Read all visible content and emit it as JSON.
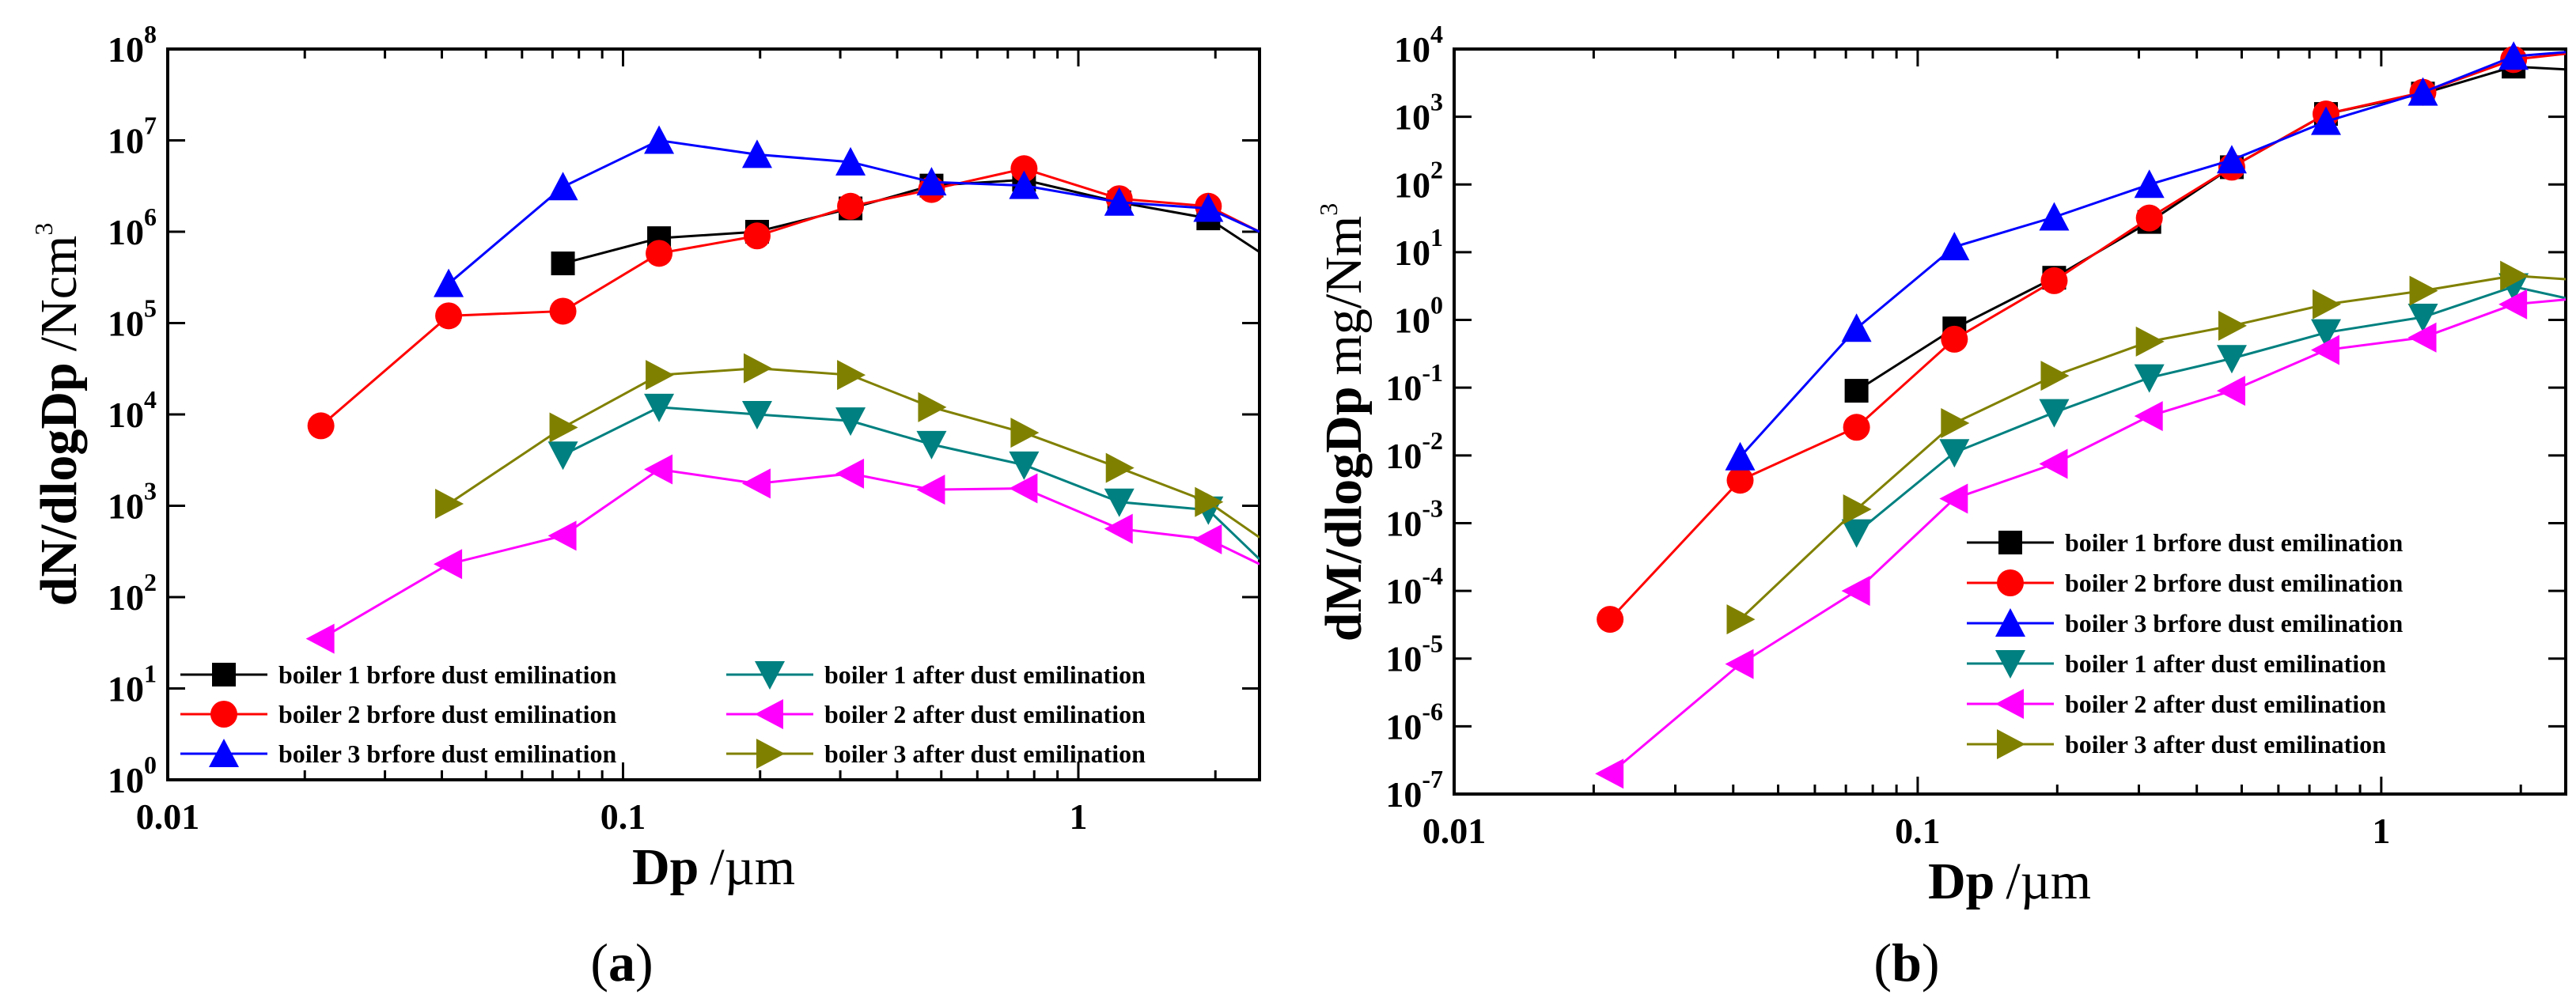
{
  "chart_data": [
    {
      "type": "line",
      "panel_label": "a",
      "xlabel": {
        "main": "Dp",
        "unit": "/µm"
      },
      "ylabel": {
        "main": "dN/dlogDp",
        "unit": "/Ncm",
        "unit_sup": "3"
      },
      "xscale": "log",
      "yscale": "log",
      "xlim": [
        0.01,
        2.5
      ],
      "ylim": [
        1,
        100000000
      ],
      "xticks": [
        {
          "value": 0.01,
          "label": "0.01"
        },
        {
          "value": 0.1,
          "label": "0.1"
        },
        {
          "value": 1,
          "label": "1"
        }
      ],
      "yticks": [
        {
          "value": 1,
          "base": "10",
          "exp": "0"
        },
        {
          "value": 10,
          "base": "10",
          "exp": "1"
        },
        {
          "value": 100,
          "base": "10",
          "exp": "2"
        },
        {
          "value": 1000,
          "base": "10",
          "exp": "3"
        },
        {
          "value": 10000,
          "base": "10",
          "exp": "4"
        },
        {
          "value": 100000,
          "base": "10",
          "exp": "5"
        },
        {
          "value": 1000000,
          "base": "10",
          "exp": "6"
        },
        {
          "value": 10000000,
          "base": "10",
          "exp": "7"
        },
        {
          "value": 100000000,
          "base": "10",
          "exp": "8"
        }
      ],
      "legend_position": "bottom-left, two columns",
      "series": [
        {
          "name": "boiler 1 brfore dust emilination",
          "color": "#000000",
          "marker": "square",
          "x": [
            0.0738,
            0.12,
            0.197,
            0.316,
            0.476,
            0.76,
            1.23,
            1.93,
            2.5
          ],
          "y": [
            450000,
            850000,
            1000000,
            1800000,
            3200000,
            3700000,
            2100000,
            1400000,
            600000
          ]
        },
        {
          "name": "boiler 2 brfore dust emilination",
          "color": "#ff0000",
          "marker": "circle",
          "x": [
            0.0217,
            0.0414,
            0.0738,
            0.12,
            0.197,
            0.316,
            0.476,
            0.76,
            1.23,
            1.93,
            2.5
          ],
          "y": [
            7500,
            120000,
            135000,
            580000,
            900000,
            1900000,
            2900000,
            4900000,
            2300000,
            1900000,
            1000000
          ]
        },
        {
          "name": "boiler 3 brfore dust emilination",
          "color": "#0000ff",
          "marker": "triangle-up",
          "x": [
            0.0414,
            0.0738,
            0.12,
            0.197,
            0.316,
            0.476,
            0.76,
            1.23,
            1.93,
            2.5
          ],
          "y": [
            270000,
            3100000,
            10000000,
            7000000,
            5800000,
            3500000,
            3200000,
            2100000,
            1800000,
            1000000
          ]
        },
        {
          "name": "boiler 1 after dust emilination",
          "color": "#008080",
          "marker": "triangle-down",
          "x": [
            0.0738,
            0.12,
            0.197,
            0.316,
            0.476,
            0.76,
            1.23,
            1.93,
            2.5
          ],
          "y": [
            3600,
            12000,
            10000,
            8500,
            4700,
            2800,
            1100,
            900,
            260
          ]
        },
        {
          "name": "boiler 2 after dust emilination",
          "color": "#ff00ff",
          "marker": "triangle-left",
          "x": [
            0.0217,
            0.0414,
            0.0738,
            0.12,
            0.197,
            0.316,
            0.476,
            0.76,
            1.23,
            1.93,
            2.5
          ],
          "y": [
            35,
            230,
            470,
            2500,
            1750,
            2250,
            1500,
            1550,
            560,
            430,
            230
          ]
        },
        {
          "name": "boiler 3 after dust emilination",
          "color": "#808000",
          "marker": "triangle-right",
          "x": [
            0.0414,
            0.0738,
            0.12,
            0.197,
            0.316,
            0.476,
            0.76,
            1.23,
            1.93,
            2.5
          ],
          "y": [
            1050,
            7200,
            27000,
            32000,
            27000,
            12000,
            6300,
            2600,
            1100,
            450
          ]
        }
      ]
    },
    {
      "type": "line",
      "panel_label": "b",
      "xlabel": {
        "main": "Dp",
        "unit": "/µm"
      },
      "ylabel": {
        "main": "dM/dlogDp",
        "unit": "mg/Nm",
        "unit_sup": "3"
      },
      "xscale": "log",
      "yscale": "log",
      "xlim": [
        0.01,
        2.5
      ],
      "ylim": [
        1e-07,
        10000
      ],
      "xticks": [
        {
          "value": 0.01,
          "label": "0.01"
        },
        {
          "value": 0.1,
          "label": "0.1"
        },
        {
          "value": 1,
          "label": "1"
        }
      ],
      "yticks": [
        {
          "value": 1e-07,
          "base": "10",
          "exp": "-7"
        },
        {
          "value": 1e-06,
          "base": "10",
          "exp": "-6"
        },
        {
          "value": 1e-05,
          "base": "10",
          "exp": "-5"
        },
        {
          "value": 0.0001,
          "base": "10",
          "exp": "-4"
        },
        {
          "value": 0.001,
          "base": "10",
          "exp": "-3"
        },
        {
          "value": 0.01,
          "base": "10",
          "exp": "-2"
        },
        {
          "value": 0.1,
          "base": "10",
          "exp": "-1"
        },
        {
          "value": 1,
          "base": "10",
          "exp": "0"
        },
        {
          "value": 10,
          "base": "10",
          "exp": "1"
        },
        {
          "value": 100,
          "base": "10",
          "exp": "2"
        },
        {
          "value": 1000,
          "base": "10",
          "exp": "3"
        },
        {
          "value": 10000,
          "base": "10",
          "exp": "4"
        }
      ],
      "legend_position": "bottom-right, one column",
      "series": [
        {
          "name": "boiler 1 brfore dust emilination",
          "color": "#000000",
          "marker": "square",
          "x": [
            0.0738,
            0.12,
            0.197,
            0.316,
            0.476,
            0.76,
            1.23,
            1.93,
            2.5
          ],
          "y": [
            0.09,
            0.75,
            4.2,
            28,
            180,
            1100,
            2200,
            5500,
            5000
          ]
        },
        {
          "name": "boiler 2 brfore dust emilination",
          "color": "#ff0000",
          "marker": "circle",
          "x": [
            0.0217,
            0.0414,
            0.0738,
            0.12,
            0.197,
            0.316,
            0.476,
            0.76,
            1.23,
            1.93,
            2.5
          ],
          "y": [
            3.8e-05,
            0.0043,
            0.026,
            0.52,
            3.8,
            32,
            180,
            1100,
            2300,
            7000,
            8500
          ]
        },
        {
          "name": "boiler 3 brfore dust emilination",
          "color": "#0000ff",
          "marker": "triangle-up",
          "x": [
            0.0414,
            0.0738,
            0.12,
            0.197,
            0.316,
            0.476,
            0.76,
            1.23,
            1.93,
            2.5
          ],
          "y": [
            0.0095,
            0.75,
            12,
            33,
            100,
            230,
            850,
            2300,
            7800,
            9000
          ]
        },
        {
          "name": "boiler 1 after dust emilination",
          "color": "#008080",
          "marker": "triangle-down",
          "x": [
            0.0738,
            0.12,
            0.197,
            0.316,
            0.476,
            0.76,
            1.23,
            1.93,
            2.5
          ],
          "y": [
            0.00072,
            0.011,
            0.043,
            0.14,
            0.27,
            0.65,
            1.1,
            3.1,
            2.1
          ]
        },
        {
          "name": "boiler 2 after dust emilination",
          "color": "#ff00ff",
          "marker": "triangle-left",
          "x": [
            0.0217,
            0.0414,
            0.0738,
            0.12,
            0.197,
            0.316,
            0.476,
            0.76,
            1.23,
            1.93,
            2.5
          ],
          "y": [
            2e-07,
            8.3e-06,
            0.0001,
            0.0023,
            0.0075,
            0.038,
            0.09,
            0.36,
            0.55,
            1.7,
            2.0
          ]
        },
        {
          "name": "boiler 3 after dust emilination",
          "color": "#808000",
          "marker": "triangle-right",
          "x": [
            0.0414,
            0.0738,
            0.12,
            0.197,
            0.316,
            0.476,
            0.76,
            1.23,
            1.93,
            2.5
          ],
          "y": [
            3.8e-05,
            0.0016,
            0.03,
            0.15,
            0.48,
            0.82,
            1.7,
            2.7,
            4.5,
            4.0
          ]
        }
      ]
    }
  ]
}
